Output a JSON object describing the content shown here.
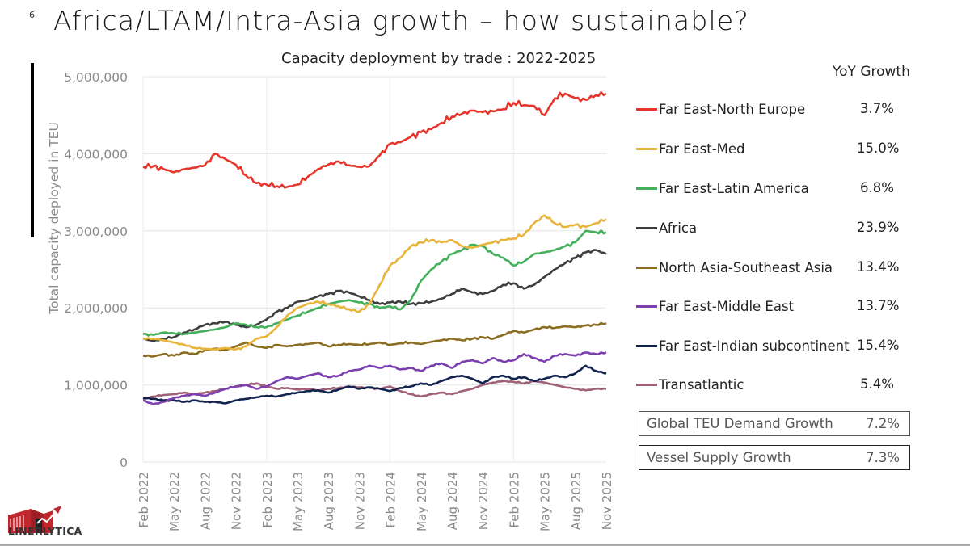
{
  "slide": {
    "number": "6",
    "title": "Africa/LTAM/Intra-Asia growth – how sustainable?",
    "logo_text": "LINERLYTICA"
  },
  "legend": {
    "header": "YoY Growth",
    "items": [
      {
        "label": "Far East-North Europe",
        "value": "3.7%",
        "color": "#e8352b"
      },
      {
        "label": "Far East-Med",
        "value": "15.0%",
        "color": "#e8b53a"
      },
      {
        "label": "Far East-Latin America",
        "value": "6.8%",
        "color": "#45b05b"
      },
      {
        "label": "Africa",
        "value": "23.9%",
        "color": "#3e3e3e"
      },
      {
        "label": "North Asia-Southeast Asia",
        "value": "13.4%",
        "color": "#8b6d22"
      },
      {
        "label": "Far East-Middle East",
        "value": "13.7%",
        "color": "#7b3fb0"
      },
      {
        "label": "Far East-Indian subcontinent",
        "value": "15.4%",
        "color": "#13234f"
      },
      {
        "label": "Transatlantic",
        "value": "5.4%",
        "color": "#a06078"
      }
    ]
  },
  "summary": {
    "demand": {
      "label": "Global TEU Demand Growth",
      "value": "7.2%"
    },
    "supply": {
      "label": "Vessel Supply Growth",
      "value": "7.3%"
    }
  },
  "chart_data": {
    "type": "line",
    "title": "Capacity deployment by trade : 2022-2025",
    "xlabel": "",
    "ylabel": "Total capacity deployed in TEU",
    "ylim": [
      0,
      5000000
    ],
    "yticks": [
      0,
      1000000,
      2000000,
      3000000,
      4000000,
      5000000
    ],
    "ytick_labels": [
      "0",
      "1,000,000",
      "2,000,000",
      "3,000,000",
      "4,000,000",
      "5,000,000"
    ],
    "xtick_labels": [
      "Feb 2022",
      "May 2022",
      "Aug 2022",
      "Nov 2022",
      "Feb 2023",
      "May 2023",
      "Aug 2023",
      "Nov 2023",
      "Feb 2024",
      "May 2024",
      "Aug 2024",
      "Nov 2024",
      "Feb 2025",
      "May 2025",
      "Aug 2025",
      "Nov 2025"
    ],
    "x_start": "Feb 2022",
    "x_end": "Nov 2025",
    "x_unit": "month",
    "grid": "vertical-yearly-and-horizontal",
    "legend_placement": "right",
    "series": [
      {
        "name": "Far East-North Europe",
        "values": [
          3830000,
          3840000,
          3800000,
          3760000,
          3800000,
          3820000,
          3850000,
          4000000,
          3930000,
          3860000,
          3720000,
          3620000,
          3600000,
          3580000,
          3570000,
          3600000,
          3700000,
          3800000,
          3860000,
          3900000,
          3850000,
          3830000,
          3840000,
          3980000,
          4130000,
          4150000,
          4220000,
          4280000,
          4320000,
          4400000,
          4480000,
          4520000,
          4560000,
          4540000,
          4550000,
          4580000,
          4660000,
          4630000,
          4620000,
          4500000,
          4720000,
          4780000,
          4720000,
          4700000,
          4760000,
          4780000
        ]
      },
      {
        "name": "Far East-Med",
        "values": [
          1600000,
          1600000,
          1580000,
          1550000,
          1520000,
          1480000,
          1470000,
          1460000,
          1480000,
          1460000,
          1500000,
          1600000,
          1630000,
          1750000,
          1900000,
          2000000,
          2050000,
          2080000,
          2050000,
          2020000,
          1980000,
          1950000,
          2050000,
          2300000,
          2550000,
          2650000,
          2800000,
          2850000,
          2880000,
          2850000,
          2880000,
          2800000,
          2780000,
          2820000,
          2850000,
          2880000,
          2900000,
          2950000,
          3100000,
          3200000,
          3100000,
          3050000,
          3080000,
          3050000,
          3100000,
          3150000
        ]
      },
      {
        "name": "Far East-Latin America",
        "values": [
          1660000,
          1650000,
          1680000,
          1670000,
          1660000,
          1680000,
          1700000,
          1720000,
          1750000,
          1800000,
          1780000,
          1750000,
          1750000,
          1800000,
          1850000,
          1900000,
          1950000,
          2000000,
          2050000,
          2080000,
          2100000,
          2070000,
          2050000,
          2000000,
          2020000,
          1980000,
          2100000,
          2350000,
          2500000,
          2600000,
          2700000,
          2750000,
          2820000,
          2800000,
          2700000,
          2650000,
          2550000,
          2600000,
          2700000,
          2720000,
          2750000,
          2800000,
          2850000,
          3000000,
          2980000,
          2980000
        ]
      },
      {
        "name": "Africa",
        "values": [
          1600000,
          1570000,
          1600000,
          1620000,
          1680000,
          1720000,
          1780000,
          1800000,
          1820000,
          1780000,
          1750000,
          1780000,
          1850000,
          1950000,
          2000000,
          2080000,
          2100000,
          2150000,
          2180000,
          2220000,
          2200000,
          2150000,
          2100000,
          2050000,
          2070000,
          2080000,
          2050000,
          2060000,
          2080000,
          2120000,
          2180000,
          2250000,
          2200000,
          2180000,
          2220000,
          2300000,
          2320000,
          2250000,
          2300000,
          2400000,
          2500000,
          2580000,
          2650000,
          2720000,
          2750000,
          2700000
        ]
      },
      {
        "name": "North Asia-Southeast Asia",
        "values": [
          1380000,
          1370000,
          1400000,
          1380000,
          1420000,
          1400000,
          1450000,
          1470000,
          1450000,
          1500000,
          1550000,
          1500000,
          1480000,
          1520000,
          1500000,
          1520000,
          1530000,
          1550000,
          1500000,
          1520000,
          1530000,
          1520000,
          1530000,
          1550000,
          1520000,
          1540000,
          1550000,
          1530000,
          1560000,
          1580000,
          1600000,
          1580000,
          1600000,
          1620000,
          1600000,
          1650000,
          1700000,
          1680000,
          1720000,
          1750000,
          1740000,
          1760000,
          1750000,
          1770000,
          1780000,
          1800000
        ]
      },
      {
        "name": "Far East-Middle East",
        "values": [
          800000,
          750000,
          780000,
          830000,
          860000,
          880000,
          860000,
          900000,
          950000,
          980000,
          1000000,
          950000,
          980000,
          1050000,
          1100000,
          1080000,
          1120000,
          1150000,
          1100000,
          1120000,
          1180000,
          1200000,
          1250000,
          1220000,
          1250000,
          1200000,
          1220000,
          1180000,
          1250000,
          1280000,
          1220000,
          1300000,
          1320000,
          1280000,
          1350000,
          1300000,
          1320000,
          1400000,
          1350000,
          1300000,
          1380000,
          1400000,
          1380000,
          1420000,
          1400000,
          1420000
        ]
      },
      {
        "name": "Far East-Indian subcontinent",
        "values": [
          830000,
          820000,
          800000,
          800000,
          780000,
          800000,
          780000,
          780000,
          760000,
          800000,
          820000,
          840000,
          860000,
          850000,
          880000,
          900000,
          920000,
          930000,
          900000,
          940000,
          980000,
          950000,
          970000,
          950000,
          920000,
          960000,
          980000,
          1020000,
          1000000,
          1050000,
          1100000,
          1120000,
          1080000,
          1020000,
          1100000,
          1120000,
          1080000,
          1100000,
          1050000,
          1080000,
          1120000,
          1100000,
          1150000,
          1250000,
          1180000,
          1150000
        ]
      },
      {
        "name": "Transatlantic",
        "values": [
          820000,
          850000,
          870000,
          880000,
          900000,
          880000,
          900000,
          920000,
          950000,
          980000,
          1000000,
          1020000,
          980000,
          950000,
          960000,
          940000,
          950000,
          930000,
          950000,
          960000,
          980000,
          970000,
          960000,
          950000,
          980000,
          920000,
          880000,
          850000,
          880000,
          900000,
          880000,
          920000,
          950000,
          1000000,
          1030000,
          1050000,
          1040000,
          1020000,
          1050000,
          1030000,
          1000000,
          970000,
          950000,
          930000,
          950000,
          950000
        ]
      }
    ]
  }
}
